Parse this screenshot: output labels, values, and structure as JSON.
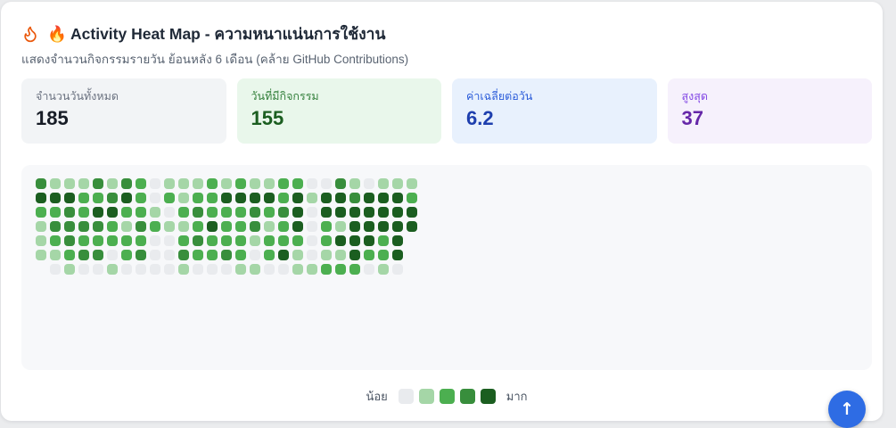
{
  "header": {
    "title": "🔥 Activity Heat Map - ความหนาแน่นการใช้งาน",
    "subtitle": "แสดงจำนวนกิจกรรมรายวัน ย้อนหลัง 6 เดือน (คล้าย GitHub Contributions)",
    "flame_icon_color": "#ea580c"
  },
  "stats": [
    {
      "label": "จำนวนวันทั้งหมด",
      "value": "185",
      "bg": "#f2f4f6",
      "label_color": "#6b7280",
      "value_color": "#171c26"
    },
    {
      "label": "วันที่มีกิจกรรม",
      "value": "155",
      "bg": "#e9f7eb",
      "label_color": "#35813d",
      "value_color": "#1b5e20"
    },
    {
      "label": "ค่าเฉลี่ยต่อวัน",
      "value": "6.2",
      "bg": "#e8f1fd",
      "label_color": "#2b5cd9",
      "value_color": "#1e3fae"
    },
    {
      "label": "สูงสุด",
      "value": "37",
      "bg": "#f6f1fc",
      "label_color": "#8247e5",
      "value_color": "#6527a8"
    }
  ],
  "chart_data": {
    "type": "heatmap",
    "title": "Activity Heat Map - ความหนาแน่นการใช้งาน",
    "rows": 7,
    "cols": 27,
    "total_days": 185,
    "active_days": 155,
    "avg_per_day": 6.2,
    "max_per_day": 37,
    "level_colors": [
      "#e9ebee",
      "#a5d6a7",
      "#4caf50",
      "#388e3c",
      "#1b5e20"
    ],
    "levels": [
      [
        3,
        1,
        1,
        1,
        3,
        1,
        3,
        2,
        0,
        1,
        1,
        1,
        2,
        1,
        2,
        1,
        1,
        2,
        2,
        0,
        0,
        3,
        1,
        0,
        1,
        1,
        1
      ],
      [
        4,
        4,
        4,
        2,
        2,
        3,
        4,
        2,
        0,
        2,
        1,
        2,
        2,
        4,
        4,
        4,
        4,
        2,
        4,
        1,
        4,
        4,
        3,
        4,
        4,
        4,
        2
      ],
      [
        2,
        2,
        3,
        2,
        4,
        4,
        2,
        2,
        1,
        0,
        2,
        3,
        2,
        2,
        2,
        3,
        2,
        3,
        4,
        0,
        4,
        4,
        4,
        4,
        4,
        4,
        4
      ],
      [
        1,
        3,
        3,
        3,
        3,
        2,
        1,
        3,
        2,
        1,
        1,
        2,
        4,
        2,
        2,
        3,
        1,
        2,
        4,
        0,
        2,
        1,
        4,
        4,
        4,
        4,
        4
      ],
      [
        1,
        2,
        3,
        2,
        2,
        2,
        2,
        2,
        0,
        0,
        2,
        3,
        2,
        2,
        2,
        1,
        2,
        2,
        2,
        0,
        2,
        4,
        4,
        4,
        2,
        4,
        null
      ],
      [
        1,
        1,
        2,
        3,
        3,
        0,
        2,
        3,
        0,
        0,
        3,
        2,
        2,
        3,
        2,
        0,
        2,
        4,
        1,
        0,
        1,
        1,
        4,
        2,
        2,
        4,
        null
      ],
      [
        null,
        0,
        1,
        0,
        0,
        1,
        0,
        0,
        0,
        0,
        1,
        0,
        0,
        0,
        1,
        1,
        0,
        0,
        1,
        1,
        2,
        2,
        2,
        0,
        1,
        0,
        null
      ]
    ]
  },
  "legend": {
    "less_label": "น้อย",
    "more_label": "มาก"
  },
  "fab": {
    "icon": "arrow-up",
    "glyph": "↑",
    "color": "#2e6ce4"
  }
}
